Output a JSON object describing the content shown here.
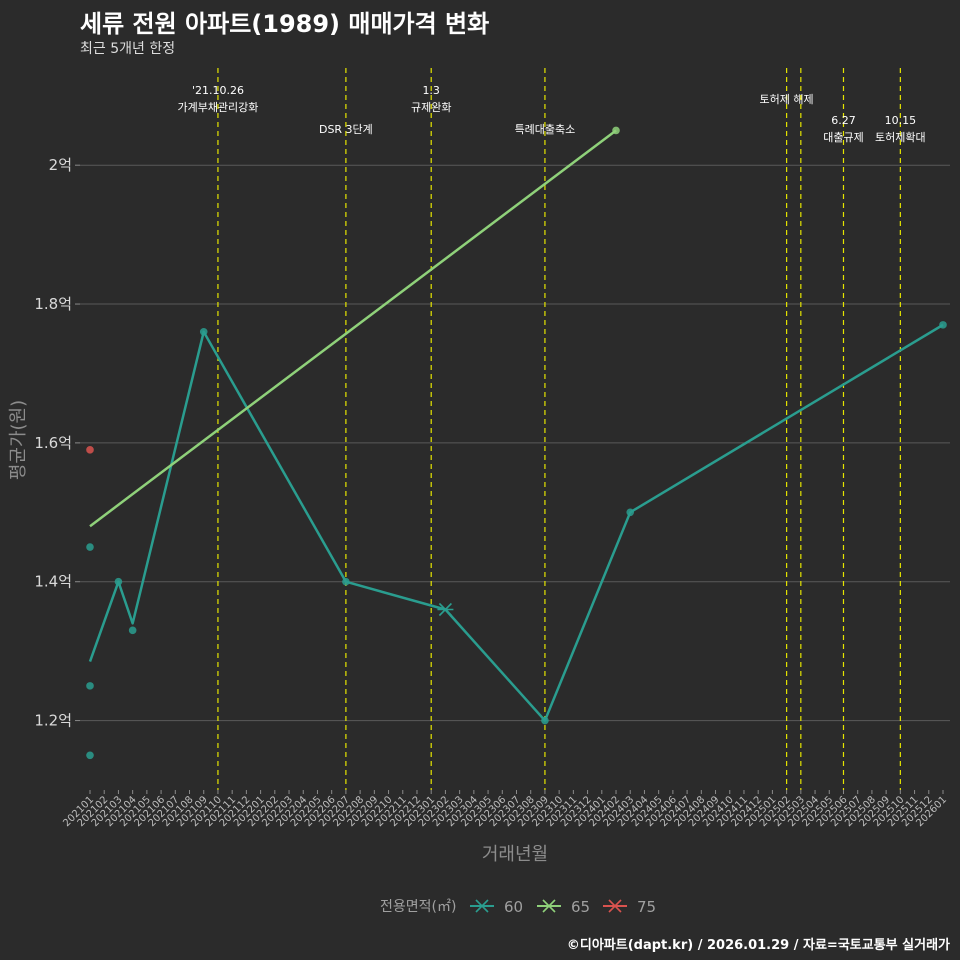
{
  "title": "세류 전원 아파트(1989) 매매가격 변화",
  "subtitle": "최근 5개년 한정",
  "caption": "©디아파트(dapt.kr) / 2026.01.29 / 자료=국토교통부 실거래가",
  "chart_data": {
    "type": "line",
    "xlabel": "거래년월",
    "ylabel": "평균가(원)",
    "ylim": [
      1.1,
      2.14
    ],
    "y_ticks": [
      1.2,
      1.4,
      1.6,
      1.8,
      2.0
    ],
    "y_tick_labels": [
      "1.2억",
      "1.4억",
      "1.6억",
      "1.8억",
      "2억"
    ],
    "x_categories": [
      "202101",
      "202102",
      "202103",
      "202104",
      "202105",
      "202106",
      "202107",
      "202108",
      "202109",
      "202110",
      "202111",
      "202112",
      "202201",
      "202202",
      "202203",
      "202204",
      "202205",
      "202206",
      "202207",
      "202208",
      "202209",
      "202210",
      "202211",
      "202212",
      "202301",
      "202302",
      "202303",
      "202304",
      "202305",
      "202306",
      "202307",
      "202308",
      "202309",
      "202310",
      "202311",
      "202312",
      "202401",
      "202402",
      "202403",
      "202404",
      "202405",
      "202406",
      "202407",
      "202408",
      "202409",
      "202410",
      "202411",
      "202412",
      "202501",
      "202502",
      "202503",
      "202504",
      "202505",
      "202506",
      "202507",
      "202508",
      "202509",
      "202510",
      "202511",
      "202512",
      "202601"
    ],
    "series": [
      {
        "name": "60",
        "color": "#2a9d8f",
        "line": [
          [
            "202101",
            1.285
          ],
          [
            "202103",
            1.4
          ],
          [
            "202104",
            1.34
          ],
          [
            "202109",
            1.76
          ],
          [
            "202207",
            1.4
          ],
          [
            "202302",
            1.36
          ],
          [
            "202309",
            1.2
          ],
          [
            "202403",
            1.5
          ],
          [
            "202601",
            1.77
          ]
        ],
        "points": [
          [
            "202101",
            1.45
          ],
          [
            "202101",
            1.25
          ],
          [
            "202101",
            1.15
          ],
          [
            "202103",
            1.4
          ],
          [
            "202104",
            1.33
          ],
          [
            "202109",
            1.76
          ],
          [
            "202207",
            1.4
          ],
          [
            "202309",
            1.2
          ],
          [
            "202403",
            1.5
          ],
          [
            "202601",
            1.77
          ]
        ],
        "cross_points": [
          [
            "202302",
            1.36
          ]
        ]
      },
      {
        "name": "65",
        "color": "#8fd17a",
        "line": [
          [
            "202101",
            1.48
          ],
          [
            "202402",
            2.05
          ]
        ],
        "points": [
          [
            "202402",
            2.05
          ]
        ],
        "cross_points": []
      },
      {
        "name": "75",
        "color": "#d9534f",
        "line": [],
        "points": [
          [
            "202101",
            1.59
          ]
        ],
        "cross_points": []
      }
    ],
    "events": [
      {
        "month": "202110",
        "lines": [
          "'21.10.26",
          "가계부채관리강화"
        ],
        "row": 0
      },
      {
        "month": "202207",
        "lines": [
          "DSR 3단계"
        ],
        "row": 2
      },
      {
        "month": "202301",
        "lines": [
          "1.3",
          "규제완화"
        ],
        "row": 0
      },
      {
        "month": "202309",
        "lines": [
          "특례대출축소"
        ],
        "row": 2
      },
      {
        "month": "202502",
        "lines": [
          "토허제 해제"
        ],
        "row": 1
      },
      {
        "month": "202503",
        "lines": [],
        "row": 1
      },
      {
        "month": "202506",
        "lines": [
          "6.27",
          "대출규제"
        ],
        "row": 2
      },
      {
        "month": "202510",
        "lines": [
          "10.15",
          "토허제확대"
        ],
        "row": 2
      }
    ],
    "legend": {
      "title": "전용면적(㎡)",
      "entries": [
        "60",
        "65",
        "75"
      ]
    },
    "event_line_color": "#e5e500",
    "grid": true
  }
}
